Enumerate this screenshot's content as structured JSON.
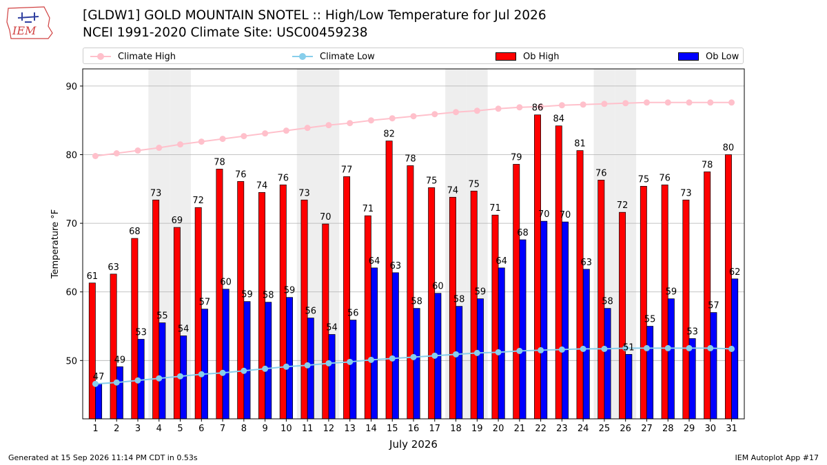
{
  "header": {
    "title_line1": "[GLDW1] GOLD MOUNTAIN SNOTEL :: High/Low Temperature for Jul 2026",
    "title_line2": "NCEI 1991-2020 Climate Site: USC00459238"
  },
  "logo": {
    "text": "IEM"
  },
  "footer": {
    "left": "Generated at 15 Sep 2026 11:14 PM CDT in 0.53s",
    "right": "IEM Autoplot App #17"
  },
  "colors": {
    "climate_high": "#ffc0cb",
    "climate_low": "#87ceeb",
    "ob_high": "#ff0000",
    "ob_low": "#0000ff",
    "weekend_band": "#eeeeee",
    "grid": "#b0b0b0"
  },
  "legend": {
    "climate_high": "Climate High",
    "climate_low": "Climate Low",
    "ob_high": "Ob High",
    "ob_low": "Ob Low"
  },
  "chart_data": {
    "type": "bar",
    "xlabel": "July 2026",
    "ylabel": "Temperature °F",
    "ylim": [
      41.5,
      92.5
    ],
    "yticks": [
      50,
      60,
      70,
      80,
      90
    ],
    "grid": true,
    "legend_placement": "top",
    "categories": [
      "1",
      "2",
      "3",
      "4",
      "5",
      "6",
      "7",
      "8",
      "9",
      "10",
      "11",
      "12",
      "13",
      "14",
      "15",
      "16",
      "17",
      "18",
      "19",
      "20",
      "21",
      "22",
      "23",
      "24",
      "25",
      "26",
      "27",
      "28",
      "29",
      "30",
      "31"
    ],
    "shaded_days": [
      4,
      5,
      11,
      12,
      18,
      19,
      25,
      26
    ],
    "series": [
      {
        "name": "Ob High",
        "kind": "bar",
        "values": [
          61.3,
          62.6,
          67.8,
          73.4,
          69.4,
          72.3,
          77.9,
          76.1,
          74.5,
          75.6,
          73.4,
          69.9,
          76.8,
          71.1,
          82.0,
          78.4,
          75.2,
          73.8,
          74.7,
          71.2,
          78.6,
          85.8,
          84.2,
          80.6,
          76.3,
          71.6,
          75.4,
          75.6,
          73.4,
          77.5,
          80.0
        ],
        "labels": [
          "61",
          "63",
          "68",
          "73",
          "69",
          "72",
          "78",
          "76",
          "74",
          "76",
          "73",
          "70",
          "77",
          "71",
          "82",
          "78",
          "75",
          "74",
          "75",
          "71",
          "79",
          "86",
          "84",
          "81",
          "76",
          "72",
          "75",
          "76",
          "73",
          "78",
          "80"
        ]
      },
      {
        "name": "Ob Low",
        "kind": "bar",
        "values": [
          46.6,
          49.1,
          53.1,
          55.5,
          53.6,
          57.5,
          60.4,
          58.6,
          58.5,
          59.2,
          56.2,
          53.8,
          55.9,
          63.5,
          62.8,
          57.6,
          59.8,
          57.9,
          59.0,
          63.5,
          67.6,
          70.3,
          70.2,
          63.3,
          57.6,
          50.9,
          55.0,
          59.0,
          53.2,
          57.0,
          61.9
        ],
        "labels": [
          "47",
          "49",
          "53",
          "55",
          "54",
          "57",
          "60",
          "59",
          "58",
          "59",
          "56",
          "54",
          "56",
          "64",
          "63",
          "58",
          "60",
          "58",
          "59",
          "64",
          "68",
          "70",
          "70",
          "63",
          "58",
          "51",
          "55",
          "59",
          "53",
          "57",
          "62"
        ]
      },
      {
        "name": "Climate High",
        "kind": "line",
        "values": [
          79.8,
          80.2,
          80.6,
          81.0,
          81.5,
          81.9,
          82.3,
          82.7,
          83.1,
          83.5,
          83.9,
          84.3,
          84.6,
          85.0,
          85.3,
          85.6,
          85.9,
          86.2,
          86.4,
          86.7,
          86.9,
          87.0,
          87.2,
          87.3,
          87.4,
          87.5,
          87.6,
          87.6,
          87.6,
          87.6,
          87.6
        ]
      },
      {
        "name": "Climate Low",
        "kind": "line",
        "values": [
          46.6,
          46.8,
          47.1,
          47.4,
          47.7,
          48.0,
          48.2,
          48.5,
          48.8,
          49.1,
          49.3,
          49.6,
          49.8,
          50.1,
          50.3,
          50.5,
          50.7,
          50.9,
          51.1,
          51.2,
          51.4,
          51.5,
          51.6,
          51.7,
          51.7,
          51.8,
          51.8,
          51.8,
          51.8,
          51.8,
          51.7
        ]
      }
    ]
  }
}
